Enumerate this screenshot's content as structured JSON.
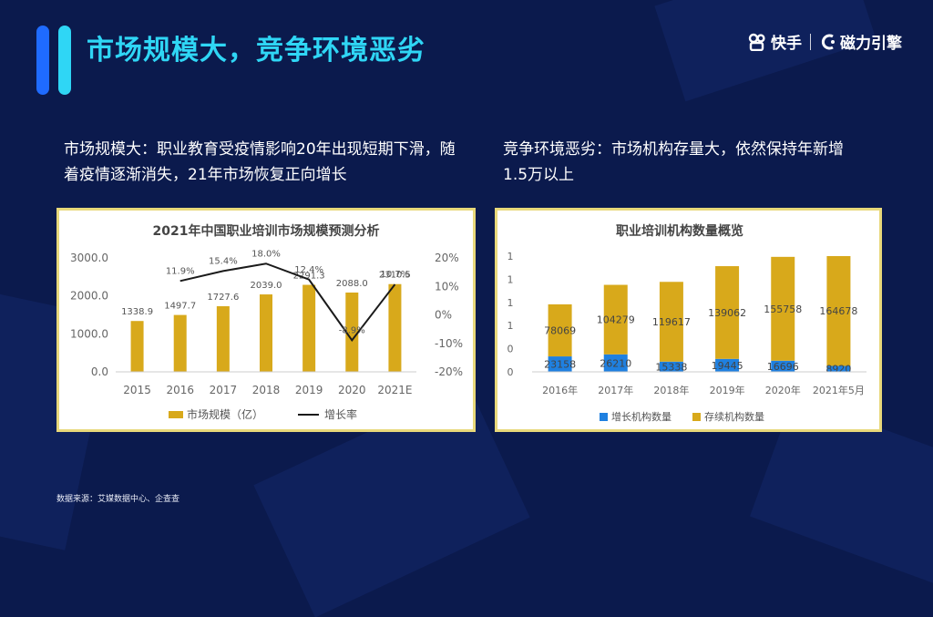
{
  "header": {
    "title": "市场规模大，竞争环境恶劣",
    "brand_kuaishou": "快手",
    "brand_engine": "磁力引擎"
  },
  "left_text": {
    "line1": "市场规模大：职业教育受疫情影响20年出现短期下滑，随",
    "line2": "着疫情逐渐消失，21年市场恢复正向增长"
  },
  "right_text": {
    "line1": "竞争环境恶劣：市场机构存量大，依然保持年新增",
    "line2": "1.5万以上"
  },
  "source": "数据来源：艾媒数据中心、企查查",
  "colors": {
    "bar_gold": "#d8a91b",
    "bar_blue": "#1f80e0",
    "line": "#1a1a1a",
    "title_cyan": "#2fd6f5"
  },
  "chart_data": [
    {
      "type": "bar",
      "title": "2021年中国职业培训市场规模预测分析",
      "categories": [
        "2015",
        "2016",
        "2017",
        "2018",
        "2019",
        "2020",
        "2021E"
      ],
      "series": [
        {
          "name": "市场规模（亿）",
          "values": [
            1338.9,
            1497.7,
            1727.6,
            2039.0,
            2291.3,
            2088.0,
            2310.5
          ],
          "labels": [
            "1338.9",
            "1497.7",
            "1727.6",
            "2039.0",
            "2291.3",
            "2088.0",
            "2310.5"
          ]
        },
        {
          "name": "增长率",
          "type": "line",
          "values": [
            null,
            11.9,
            15.4,
            18.0,
            12.4,
            -8.9,
            10.7
          ],
          "labels": [
            "",
            "11.9%",
            "15.4%",
            "18.0%",
            "12.4%",
            "-8.9%",
            "10.7%"
          ]
        }
      ],
      "y_ticks": [
        "0.0",
        "1000.0",
        "2000.0",
        "3000.0"
      ],
      "ylim": [
        0,
        3000
      ],
      "y2_ticks": [
        "-20%",
        "-10%",
        "0%",
        "10%",
        "20%"
      ],
      "y2lim": [
        -20,
        20
      ],
      "legend_position": "bottom"
    },
    {
      "type": "bar",
      "stacked": true,
      "title": "职业培训机构数量概览",
      "categories": [
        "2016年",
        "2017年",
        "2018年",
        "2019年",
        "2020年",
        "2021年5月"
      ],
      "series": [
        {
          "name": "增长机构数量",
          "values": [
            23158,
            26210,
            15338,
            19445,
            16696,
            8920
          ]
        },
        {
          "name": "存续机构数量",
          "values": [
            78069,
            104279,
            119617,
            139062,
            155758,
            164678
          ]
        }
      ],
      "y_ticks": [
        "0",
        "0",
        "1",
        "1",
        "1",
        "1"
      ],
      "legend_position": "bottom"
    }
  ]
}
